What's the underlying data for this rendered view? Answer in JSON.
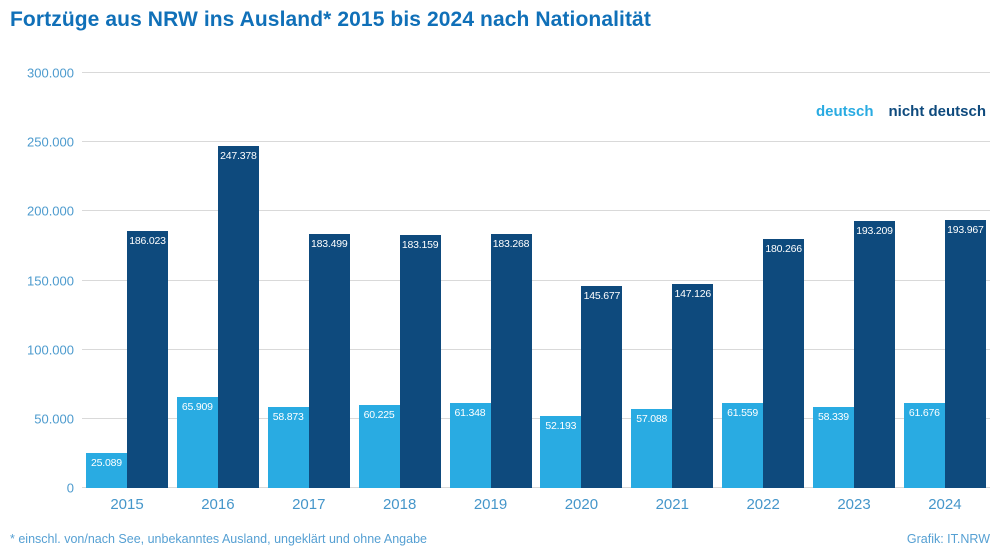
{
  "title": "Fortzüge aus NRW ins Ausland* 2015 bis 2024 nach Nationalität",
  "footer": {
    "footnote": "*  einschl. von/nach See, unbekanntes Ausland, ungeklärt und ohne Angabe",
    "credit": "Grafik: IT.NRW"
  },
  "colors": {
    "background": "#ffffff",
    "title_blue": "#1070b8",
    "deutsch": "#29abe2",
    "nicht_deutsch": "#0e4a7d",
    "axis_label": "#4d9bce",
    "year_label": "#4596ca",
    "footnote": "#56a0d3",
    "gridline": "#d9d9d9",
    "bar_label": "#ffffff"
  },
  "chart_data": {
    "type": "bar",
    "title": "Fortzüge aus NRW ins Ausland* 2015 bis 2024 nach Nationalität",
    "categories": [
      "2015",
      "2016",
      "2017",
      "2018",
      "2019",
      "2020",
      "2021",
      "2022",
      "2023",
      "2024"
    ],
    "series": [
      {
        "name": "deutsch",
        "color_key": "deutsch",
        "values": [
          25089,
          65909,
          58873,
          60225,
          61348,
          52193,
          57088,
          61559,
          58339,
          61676
        ]
      },
      {
        "name": "nicht deutsch",
        "color_key": "nicht_deutsch",
        "values": [
          186023,
          247378,
          183499,
          183159,
          183268,
          145677,
          147126,
          180266,
          193209,
          193967
        ]
      }
    ],
    "xlabel": "",
    "ylabel": "",
    "ylim": [
      0,
      300000
    ],
    "ytick_step": 50000,
    "grid": true,
    "legend_position": "top-right",
    "value_labels": "inside-top",
    "thousands_separator": "."
  }
}
